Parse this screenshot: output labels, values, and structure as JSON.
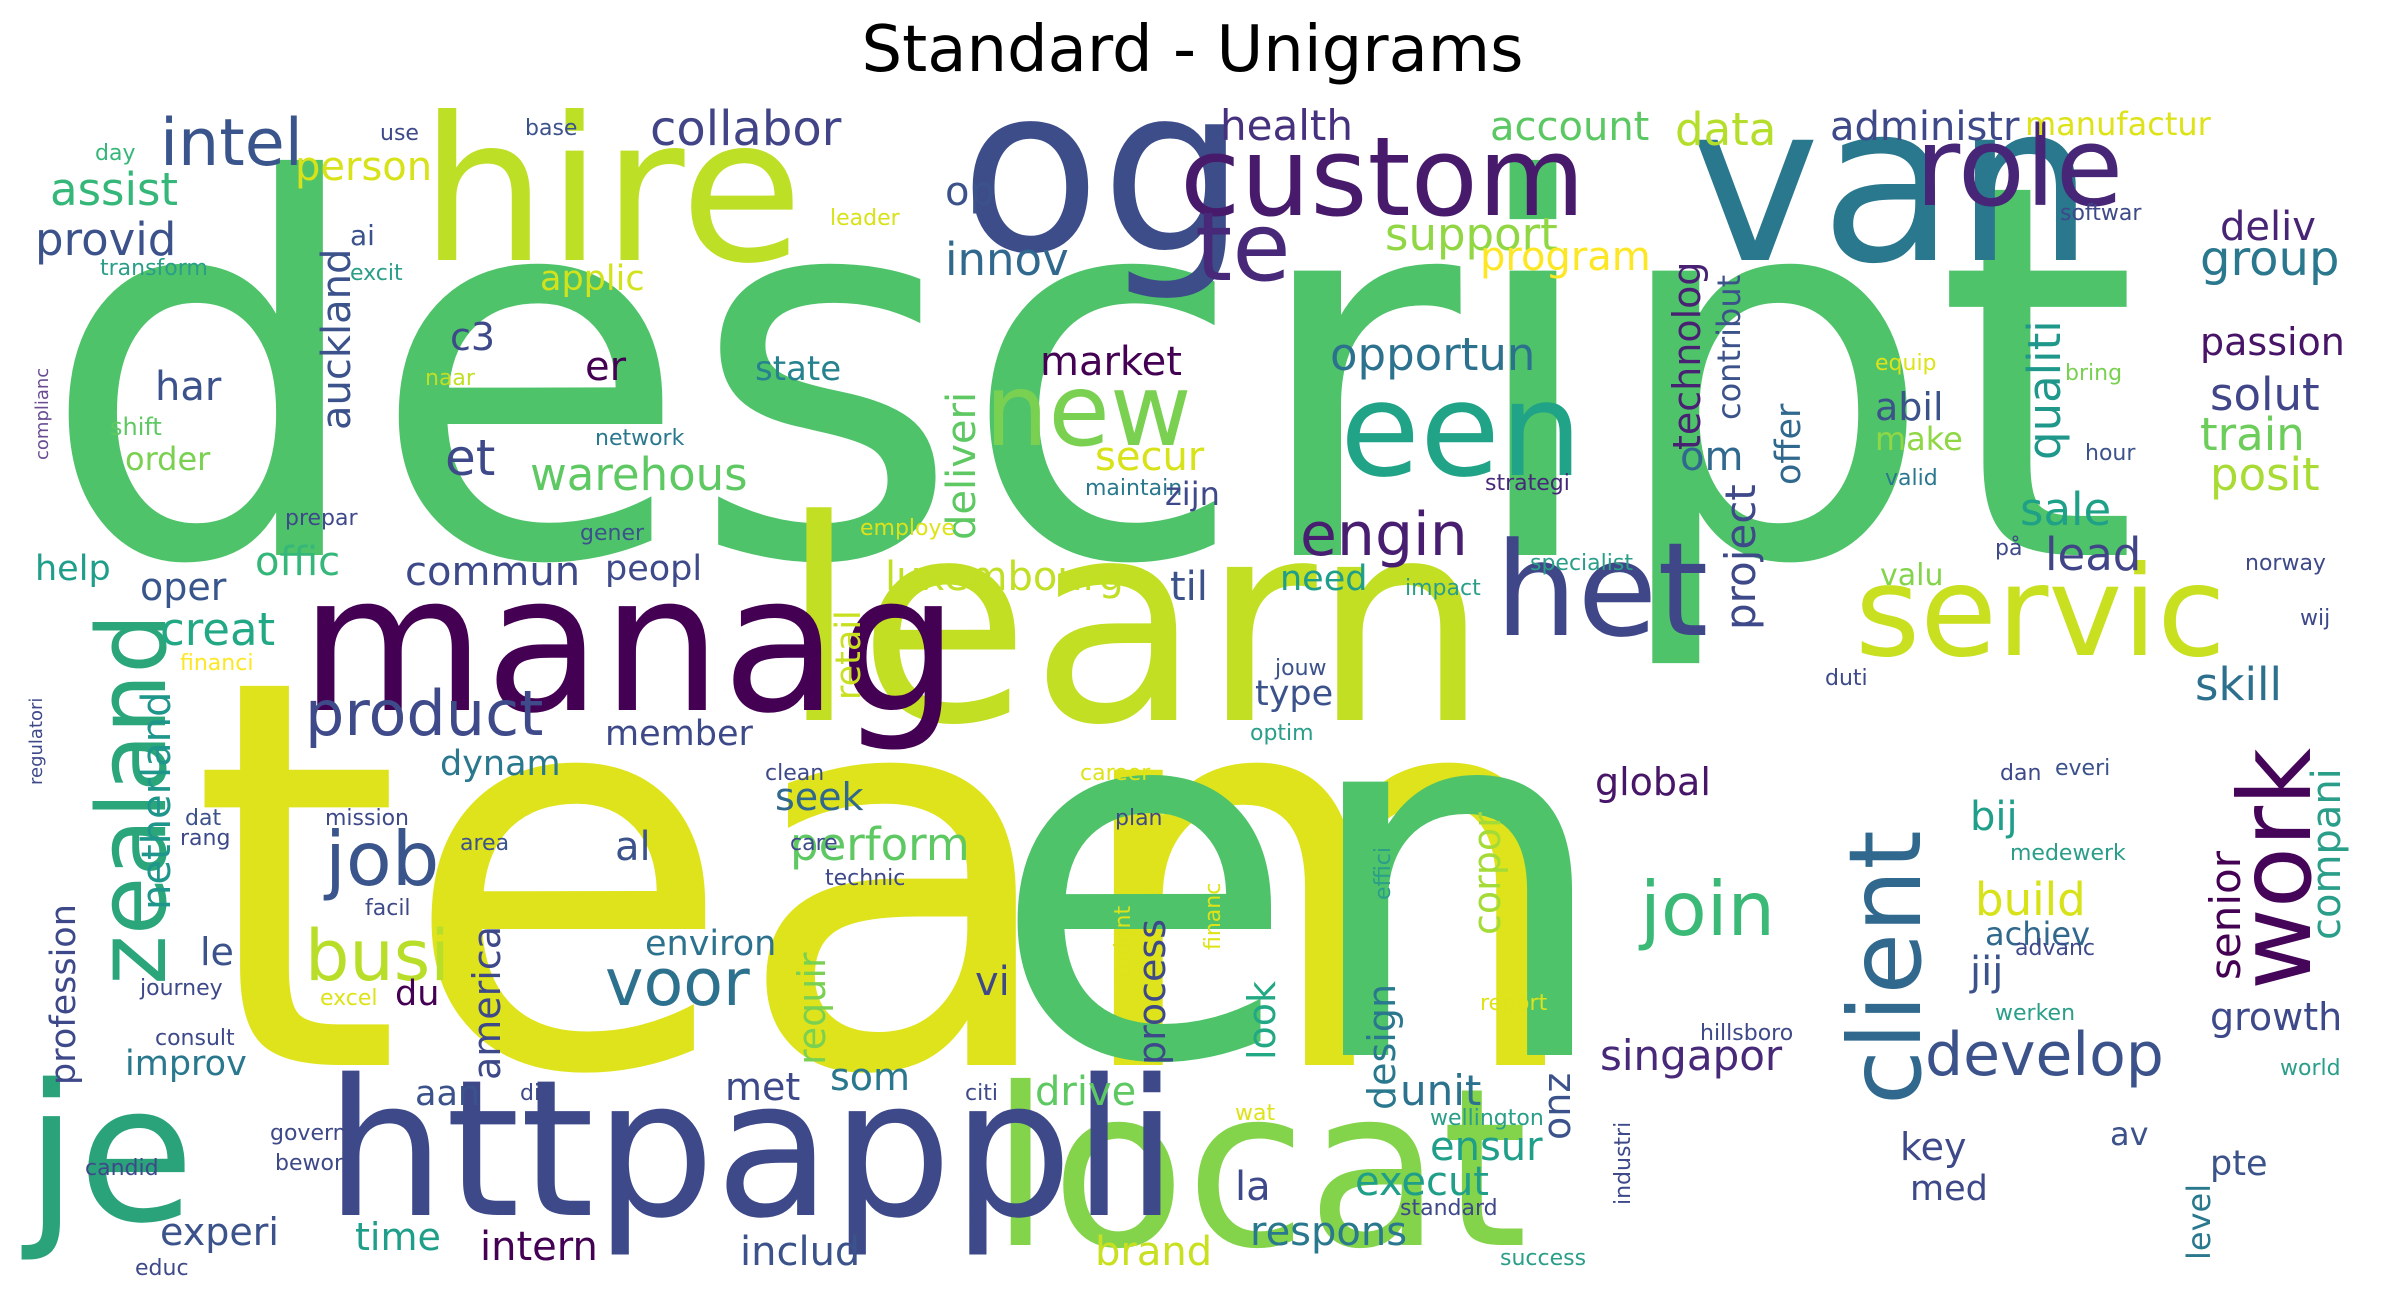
{
  "title": "Standard - Unigrams",
  "words": [
    {
      "text": "descript",
      "color": "#4fc36a"
    },
    {
      "text": "team",
      "color": "#dfe31c"
    },
    {
      "text": "en",
      "color": "#4fc36a"
    },
    {
      "text": "locat",
      "color": "#84d44b"
    },
    {
      "text": "learn",
      "color": "#c2df23"
    },
    {
      "text": "van",
      "color": "#29788e"
    },
    {
      "text": "og",
      "color": "#3d4d8a"
    },
    {
      "text": "hire",
      "color": "#bddf26"
    },
    {
      "text": "custom",
      "color": "#481a6c"
    },
    {
      "text": "manag",
      "color": "#440154"
    },
    {
      "text": "httpappli",
      "color": "#3e4989"
    },
    {
      "text": "je",
      "color": "#2aa37b"
    },
    {
      "text": "een",
      "color": "#20a386"
    },
    {
      "text": "het",
      "color": "#3f4788"
    },
    {
      "text": "servic",
      "color": "#c8e020"
    },
    {
      "text": "role",
      "color": "#482677"
    },
    {
      "text": "te",
      "color": "#482878"
    },
    {
      "text": "new",
      "color": "#7ad151"
    },
    {
      "text": "work",
      "color": "#450559"
    },
    {
      "text": "client",
      "color": "#31688e"
    },
    {
      "text": "zealand",
      "color": "#2aa67a"
    },
    {
      "text": "intel",
      "color": "#39558c"
    },
    {
      "text": "product",
      "color": "#3e4a89"
    },
    {
      "text": "job",
      "color": "#3a548c"
    },
    {
      "text": "busi",
      "color": "#b8de29"
    },
    {
      "text": "develop",
      "color": "#3b528b"
    },
    {
      "text": "join",
      "color": "#3aba76"
    },
    {
      "text": "voor",
      "color": "#2c718e"
    },
    {
      "text": "engin",
      "color": "#481f70"
    },
    {
      "text": "collabor",
      "color": "#414487"
    },
    {
      "text": "assist",
      "color": "#35b779"
    },
    {
      "text": "provid",
      "color": "#3b528b"
    },
    {
      "text": "person",
      "color": "#d8e219"
    },
    {
      "text": "health",
      "color": "#46317e"
    },
    {
      "text": "account",
      "color": "#5cc863"
    },
    {
      "text": "data",
      "color": "#b5de2b"
    },
    {
      "text": "administr",
      "color": "#3e4989"
    },
    {
      "text": "manufactur",
      "color": "#dde318"
    },
    {
      "text": "op",
      "color": "#3b528b"
    },
    {
      "text": "innov",
      "color": "#31688e"
    },
    {
      "text": "support",
      "color": "#90d743"
    },
    {
      "text": "program",
      "color": "#fde725"
    },
    {
      "text": "deliv",
      "color": "#482475"
    },
    {
      "text": "group",
      "color": "#2a788e"
    },
    {
      "text": "applic",
      "color": "#d2e21b"
    },
    {
      "text": "technolog",
      "color": "#482173"
    },
    {
      "text": "contribut",
      "color": "#3b528b"
    },
    {
      "text": "project",
      "color": "#3e4989"
    },
    {
      "text": "offer",
      "color": "#31688e"
    },
    {
      "text": "qualiti",
      "color": "#1f988b"
    },
    {
      "text": "auckland",
      "color": "#3b528b"
    },
    {
      "text": "er",
      "color": "#440154"
    },
    {
      "text": "c3",
      "color": "#3e4989"
    },
    {
      "text": "state",
      "color": "#26828e"
    },
    {
      "text": "deliveri",
      "color": "#5ec962"
    },
    {
      "text": "market",
      "color": "#440154"
    },
    {
      "text": "opportun",
      "color": "#2c728e"
    },
    {
      "text": "abil",
      "color": "#3b528b"
    },
    {
      "text": "make",
      "color": "#8fd744"
    },
    {
      "text": "passion",
      "color": "#481467"
    },
    {
      "text": "solut",
      "color": "#404688"
    },
    {
      "text": "train",
      "color": "#6ccd5a"
    },
    {
      "text": "posit",
      "color": "#a8db34"
    },
    {
      "text": "har",
      "color": "#3b528b"
    },
    {
      "text": "et",
      "color": "#3e4989"
    },
    {
      "text": "warehous",
      "color": "#5ec962"
    },
    {
      "text": "secur",
      "color": "#d8e219"
    },
    {
      "text": "om",
      "color": "#31688e"
    },
    {
      "text": "sale",
      "color": "#1fa187"
    },
    {
      "text": "lead",
      "color": "#414487"
    },
    {
      "text": "order",
      "color": "#7ad151"
    },
    {
      "text": "offic",
      "color": "#35b779"
    },
    {
      "text": "help",
      "color": "#1f9e89"
    },
    {
      "text": "oper",
      "color": "#39568c"
    },
    {
      "text": "commun",
      "color": "#3e4989"
    },
    {
      "text": "peopl",
      "color": "#3e4a89"
    },
    {
      "text": "luxembourg",
      "color": "#c0df25"
    },
    {
      "text": "til",
      "color": "#3b528b"
    },
    {
      "text": "need",
      "color": "#1f9e89"
    },
    {
      "text": "creat",
      "color": "#22a884"
    },
    {
      "text": "netherland",
      "color": "#1f968b"
    },
    {
      "text": "retail",
      "color": "#c8e020"
    },
    {
      "text": "member",
      "color": "#3e4989"
    },
    {
      "text": "type",
      "color": "#3b528b"
    },
    {
      "text": "skill",
      "color": "#2d708e"
    },
    {
      "text": "dynam",
      "color": "#2a788e"
    },
    {
      "text": "global",
      "color": "#481668"
    },
    {
      "text": "bij",
      "color": "#1f9e89"
    },
    {
      "text": "senior",
      "color": "#440154"
    },
    {
      "text": "compani",
      "color": "#2a9e89"
    },
    {
      "text": "build",
      "color": "#d8e219"
    },
    {
      "text": "seek",
      "color": "#31688e"
    },
    {
      "text": "perform",
      "color": "#5ec962"
    },
    {
      "text": "al",
      "color": "#3b528b"
    },
    {
      "text": "america",
      "color": "#3e4989"
    },
    {
      "text": "environ",
      "color": "#2c728e"
    },
    {
      "text": "process",
      "color": "#3e4989"
    },
    {
      "text": "look",
      "color": "#22a884"
    },
    {
      "text": "vi",
      "color": "#3e4989"
    },
    {
      "text": "jij",
      "color": "#3b528b"
    },
    {
      "text": "achiev",
      "color": "#31688e"
    },
    {
      "text": "growth",
      "color": "#3e4989"
    },
    {
      "text": "le",
      "color": "#3b528b"
    },
    {
      "text": "du",
      "color": "#440154"
    },
    {
      "text": "requir",
      "color": "#7ad151"
    },
    {
      "text": "design",
      "color": "#2a788e"
    },
    {
      "text": "corpor",
      "color": "#a5db36"
    },
    {
      "text": "singapor",
      "color": "#482878"
    },
    {
      "text": "profession",
      "color": "#3e4989"
    },
    {
      "text": "improv",
      "color": "#2a788e"
    },
    {
      "text": "drive",
      "color": "#5ec962"
    },
    {
      "text": "unit",
      "color": "#2c728e"
    },
    {
      "text": "met",
      "color": "#3e4989"
    },
    {
      "text": "som",
      "color": "#2a788e"
    },
    {
      "text": "aan",
      "color": "#3b528b"
    },
    {
      "text": "ensur",
      "color": "#1f9e89"
    },
    {
      "text": "la",
      "color": "#3e4989"
    },
    {
      "text": "execut",
      "color": "#1f9e89"
    },
    {
      "text": "onz",
      "color": "#3b528b"
    },
    {
      "text": "key",
      "color": "#3e4989"
    },
    {
      "text": "av",
      "color": "#3b528b"
    },
    {
      "text": "med",
      "color": "#3e4989"
    },
    {
      "text": "pte",
      "color": "#3b528b"
    },
    {
      "text": "level",
      "color": "#2a788e"
    },
    {
      "text": "experi",
      "color": "#3b528b"
    },
    {
      "text": "time",
      "color": "#1f9e89"
    },
    {
      "text": "intern",
      "color": "#440154"
    },
    {
      "text": "includ",
      "color": "#3b528b"
    },
    {
      "text": "brand",
      "color": "#c8e020"
    },
    {
      "text": "respons",
      "color": "#2a788e"
    },
    {
      "text": "day",
      "color": "#35b779"
    },
    {
      "text": "use",
      "color": "#3e4989"
    },
    {
      "text": "base",
      "color": "#3b528b"
    },
    {
      "text": "ai",
      "color": "#3b528b"
    },
    {
      "text": "excit",
      "color": "#2a9e89"
    },
    {
      "text": "transform",
      "color": "#2a9e89"
    },
    {
      "text": "leader",
      "color": "#d8e219"
    },
    {
      "text": "softwar",
      "color": "#3e4989"
    },
    {
      "text": "complianc",
      "color": "#6a4c93"
    },
    {
      "text": "shift",
      "color": "#5ec962"
    },
    {
      "text": "naar",
      "color": "#c2df23"
    },
    {
      "text": "network",
      "color": "#2a788e"
    },
    {
      "text": "maintain",
      "color": "#2a788e"
    },
    {
      "text": "zijn",
      "color": "#3e4989"
    },
    {
      "text": "strategi",
      "color": "#482878"
    },
    {
      "text": "equip",
      "color": "#dde318"
    },
    {
      "text": "bring",
      "color": "#7ad151"
    },
    {
      "text": "hour",
      "color": "#3b528b"
    },
    {
      "text": "valid",
      "color": "#2a788e"
    },
    {
      "text": "prepar",
      "color": "#3e4989"
    },
    {
      "text": "gener",
      "color": "#3b528b"
    },
    {
      "text": "employe",
      "color": "#dde318"
    },
    {
      "text": "specialist",
      "color": "#2a9e89"
    },
    {
      "text": "på",
      "color": "#3e4989"
    },
    {
      "text": "norway",
      "color": "#3e4989"
    },
    {
      "text": "impact",
      "color": "#2a9e89"
    },
    {
      "text": "valu",
      "color": "#84d44b"
    },
    {
      "text": "wij",
      "color": "#3e4989"
    },
    {
      "text": "regulatori",
      "color": "#3e4989"
    },
    {
      "text": "financi",
      "color": "#fde725"
    },
    {
      "text": "jouw",
      "color": "#3b528b"
    },
    {
      "text": "optim",
      "color": "#2a9e89"
    },
    {
      "text": "duti",
      "color": "#3e4989"
    },
    {
      "text": "clean",
      "color": "#3e4989"
    },
    {
      "text": "career",
      "color": "#dde318"
    },
    {
      "text": "dan",
      "color": "#3e4989"
    },
    {
      "text": "everi",
      "color": "#3b528b"
    },
    {
      "text": "mission",
      "color": "#3e4989"
    },
    {
      "text": "dat",
      "color": "#3b528b"
    },
    {
      "text": "rang",
      "color": "#3e4989"
    },
    {
      "text": "area",
      "color": "#3b528b"
    },
    {
      "text": "care",
      "color": "#3e4989"
    },
    {
      "text": "plan",
      "color": "#3e4989"
    },
    {
      "text": "technic",
      "color": "#3e4989"
    },
    {
      "text": "facil",
      "color": "#3e4989"
    },
    {
      "text": "financ",
      "color": "#dde318"
    },
    {
      "text": "effici",
      "color": "#2a9e89"
    },
    {
      "text": "student",
      "color": "#dde318"
    },
    {
      "text": "medewerk",
      "color": "#2a9e89"
    },
    {
      "text": "advanc",
      "color": "#3e4989"
    },
    {
      "text": "journey",
      "color": "#3e4989"
    },
    {
      "text": "excel",
      "color": "#dde318"
    },
    {
      "text": "consult",
      "color": "#3e4989"
    },
    {
      "text": "report",
      "color": "#dde318"
    },
    {
      "text": "werken",
      "color": "#2a9e89"
    },
    {
      "text": "hillsboro",
      "color": "#3e4989"
    },
    {
      "text": "world",
      "color": "#2a9e89"
    },
    {
      "text": "die",
      "color": "#3e4989"
    },
    {
      "text": "citi",
      "color": "#3e4989"
    },
    {
      "text": "wat",
      "color": "#dde318"
    },
    {
      "text": "wellington",
      "color": "#2a9e89"
    },
    {
      "text": "industri",
      "color": "#3e4989"
    },
    {
      "text": "govern",
      "color": "#3e4989"
    },
    {
      "text": "bewon",
      "color": "#3e4989"
    },
    {
      "text": "candid",
      "color": "#3e4989"
    },
    {
      "text": "standard",
      "color": "#3e4989"
    },
    {
      "text": "success",
      "color": "#2a9e89"
    },
    {
      "text": "educ",
      "color": "#3e4989"
    }
  ]
}
